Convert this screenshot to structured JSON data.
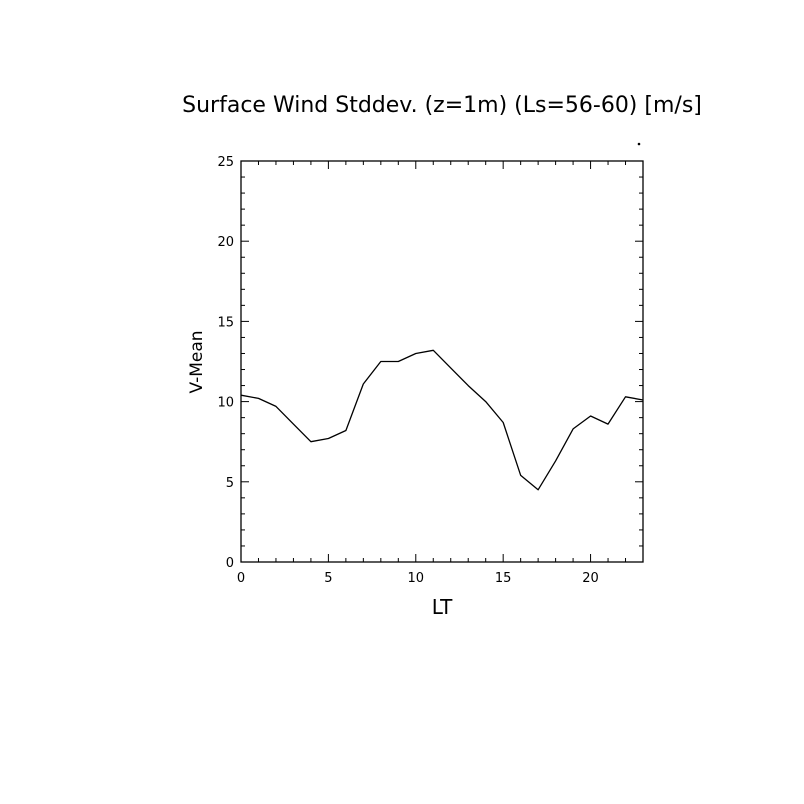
{
  "chart_data": {
    "type": "line",
    "title": "Surface Wind Stddev. (z=1m) (Ls=56-60) [m/s]",
    "xlabel": "LT",
    "ylabel": "V-Mean",
    "xlim": [
      0,
      23
    ],
    "ylim": [
      0,
      25
    ],
    "x_ticks": [
      0,
      5,
      10,
      15,
      20
    ],
    "y_ticks": [
      0,
      5,
      10,
      15,
      20,
      25
    ],
    "x_minor_step": 1,
    "y_minor_step": 1,
    "grid": false,
    "series": [
      {
        "x": [
          0,
          1,
          2,
          3,
          4,
          5,
          6,
          7,
          8,
          9,
          10,
          11,
          12,
          13,
          14,
          15,
          16,
          17,
          18,
          19,
          20,
          21,
          22,
          23
        ],
        "values": [
          10.4,
          10.2,
          9.7,
          8.6,
          7.5,
          7.7,
          8.2,
          11.1,
          12.5,
          12.5,
          13.0,
          13.2,
          12.1,
          11.0,
          10.0,
          8.7,
          5.4,
          4.5,
          6.3,
          8.3,
          9.1,
          8.6,
          10.3,
          10.1
        ],
        "color": "#000000"
      }
    ]
  }
}
